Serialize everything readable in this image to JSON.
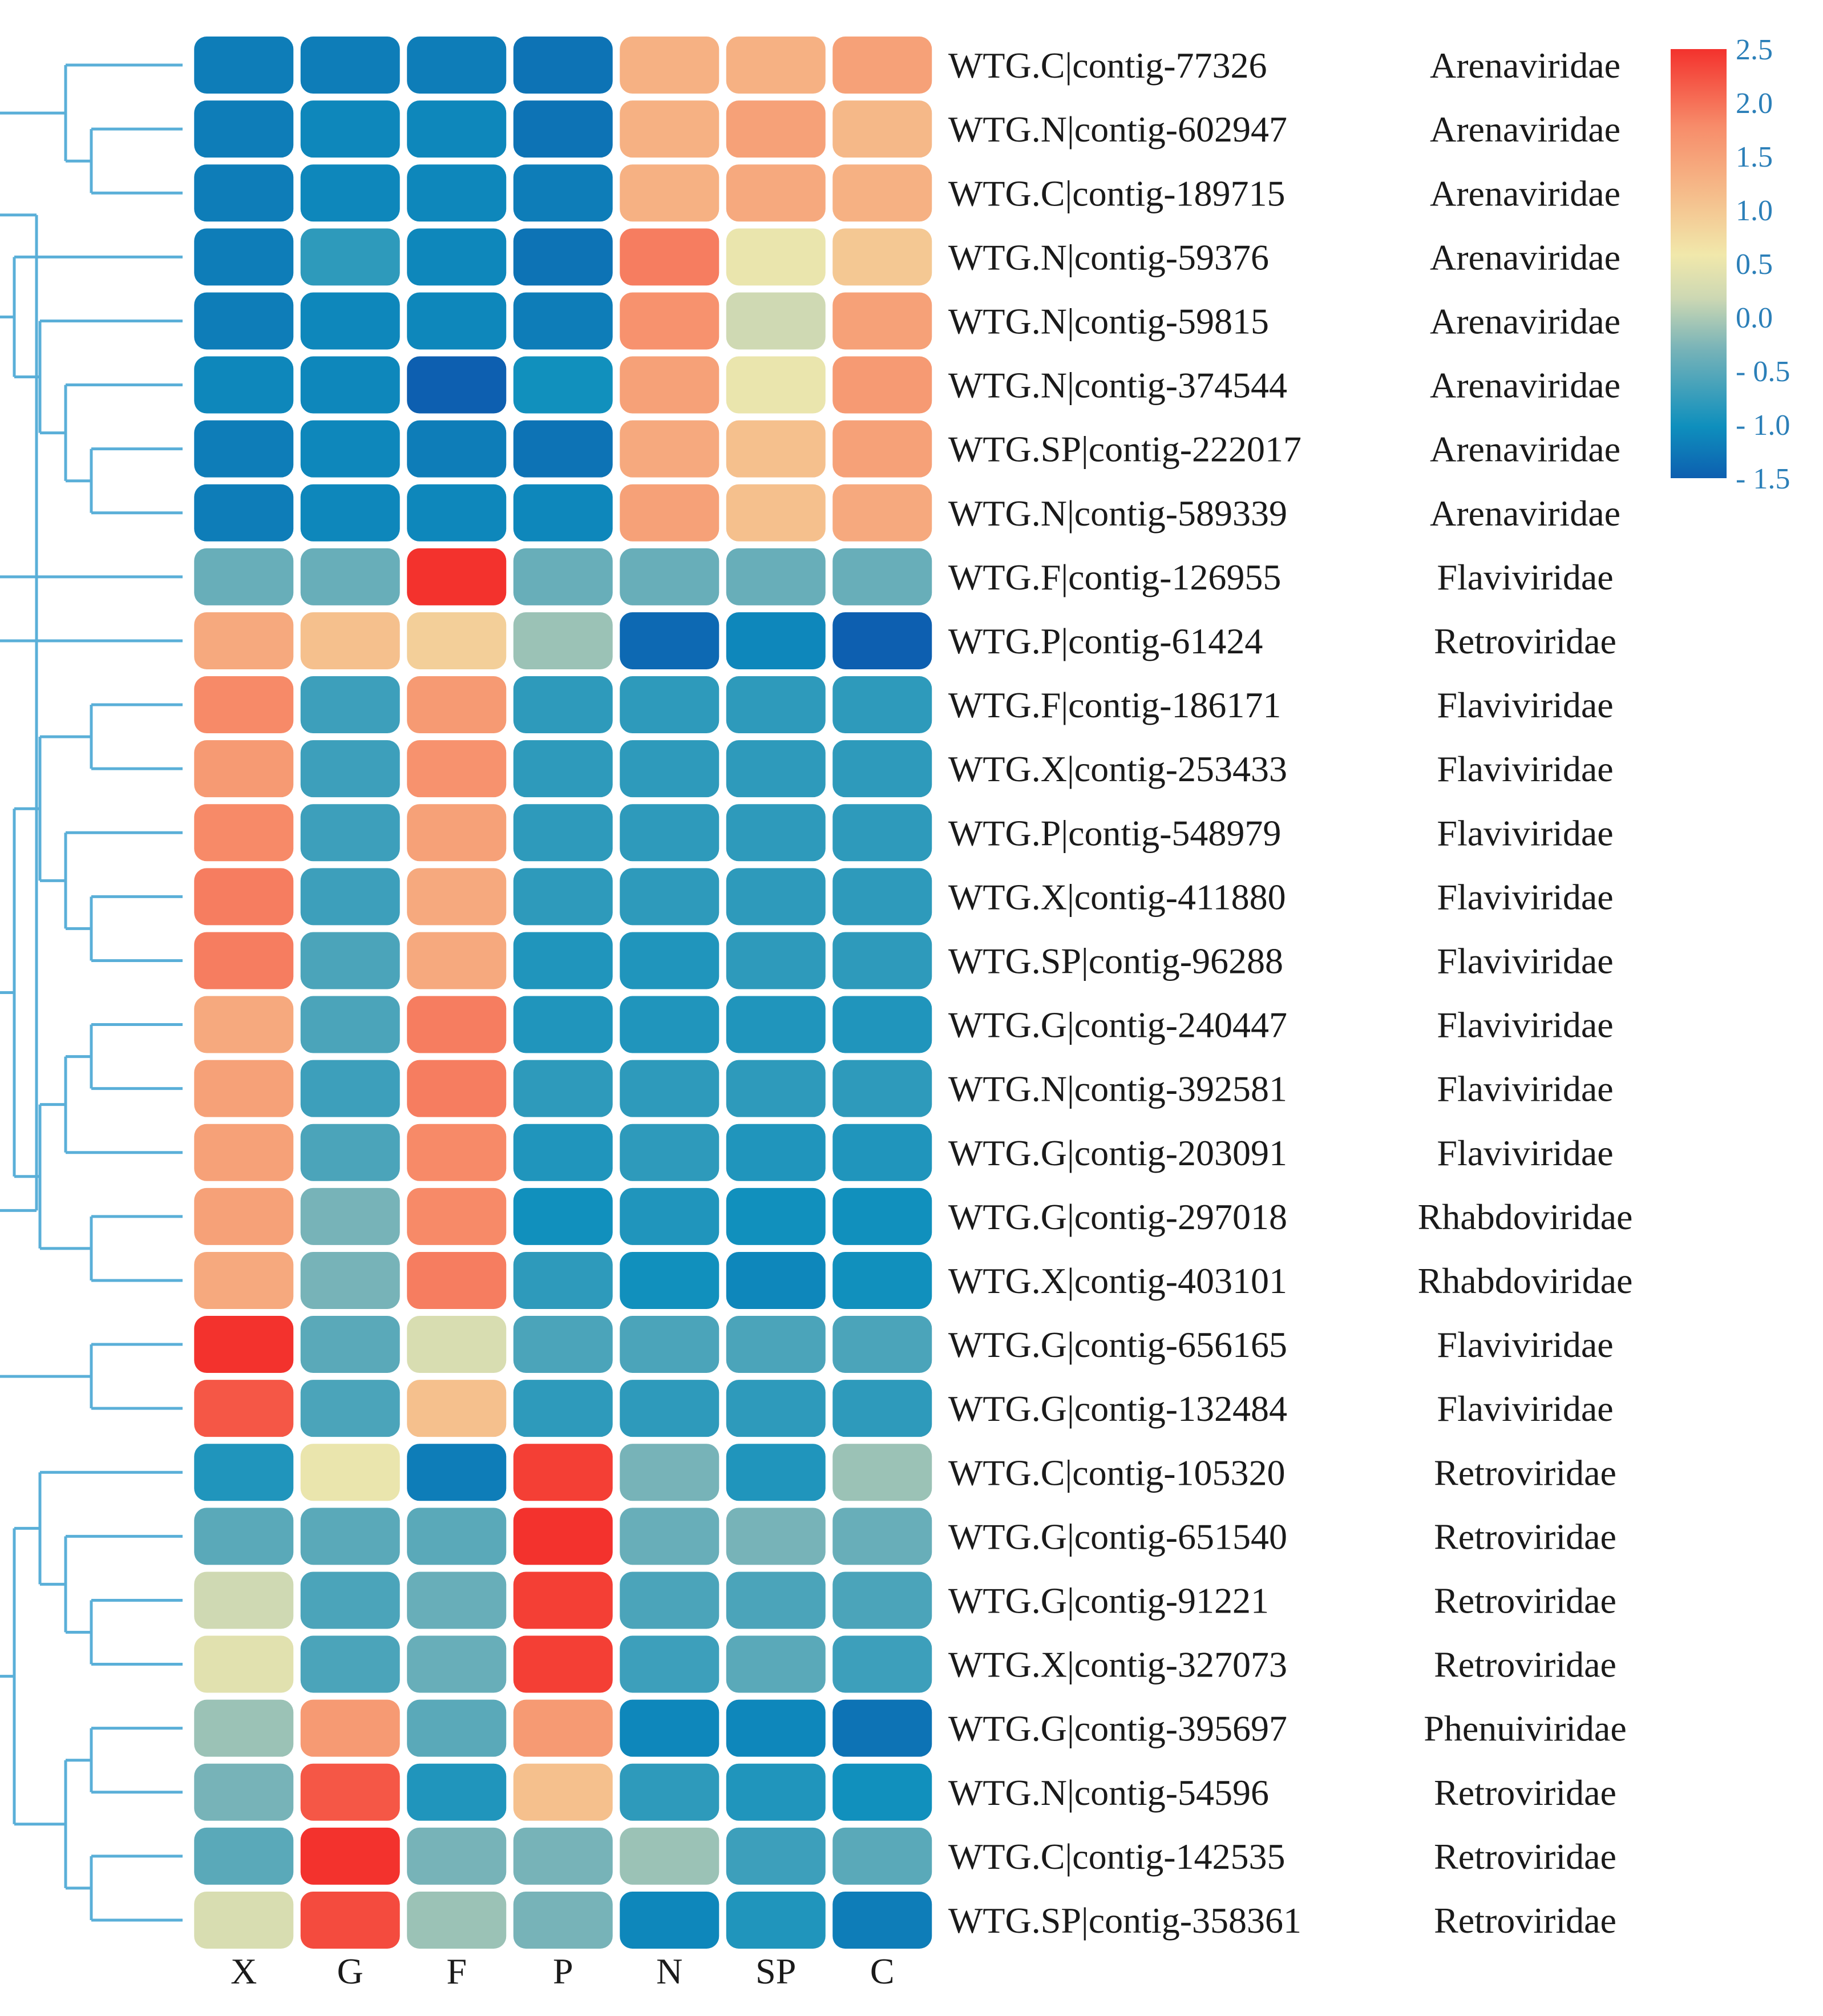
{
  "chart_data": {
    "type": "heatmap",
    "title": "",
    "columns": [
      "X",
      "G",
      "F",
      "P",
      "N",
      "SP",
      "C"
    ],
    "rows": [
      {
        "label": "WTG.C|contig-77326",
        "family": "Arenaviridae",
        "values": [
          -1.2,
          -1.2,
          -1.2,
          -1.3,
          1.3,
          1.3,
          1.5
        ]
      },
      {
        "label": "WTG.N|contig-602947",
        "family": "Arenaviridae",
        "values": [
          -1.2,
          -1.1,
          -1.1,
          -1.3,
          1.3,
          1.5,
          1.2
        ]
      },
      {
        "label": "WTG.C|contig-189715",
        "family": "Arenaviridae",
        "values": [
          -1.2,
          -1.1,
          -1.1,
          -1.2,
          1.3,
          1.4,
          1.3
        ]
      },
      {
        "label": "WTG.N|contig-59376",
        "family": "Arenaviridae",
        "values": [
          -1.2,
          -0.8,
          -1.1,
          -1.3,
          1.9,
          0.5,
          1.0
        ]
      },
      {
        "label": "WTG.N|contig-59815",
        "family": "Arenaviridae",
        "values": [
          -1.2,
          -1.1,
          -1.1,
          -1.2,
          1.7,
          0.2,
          1.5
        ]
      },
      {
        "label": "WTG.N|contig-374544",
        "family": "Arenaviridae",
        "values": [
          -1.1,
          -1.1,
          -1.5,
          -1.0,
          1.5,
          0.5,
          1.6
        ]
      },
      {
        "label": "WTG.SP|contig-222017",
        "family": "Arenaviridae",
        "values": [
          -1.2,
          -1.1,
          -1.2,
          -1.3,
          1.4,
          1.1,
          1.5
        ]
      },
      {
        "label": "WTG.N|contig-589339",
        "family": "Arenaviridae",
        "values": [
          -1.2,
          -1.1,
          -1.1,
          -1.1,
          1.5,
          1.1,
          1.4
        ]
      },
      {
        "label": "WTG.F|contig-126955",
        "family": "Flaviviridae",
        "values": [
          -0.4,
          -0.4,
          2.5,
          -0.4,
          -0.4,
          -0.4,
          -0.4
        ]
      },
      {
        "label": "WTG.P|contig-61424",
        "family": "Retroviridae",
        "values": [
          1.4,
          1.1,
          0.9,
          -0.1,
          -1.4,
          -1.1,
          -1.5
        ]
      },
      {
        "label": "WTG.F|contig-186171",
        "family": "Flaviviridae",
        "values": [
          1.8,
          -0.7,
          1.6,
          -0.8,
          -0.8,
          -0.8,
          -0.8
        ]
      },
      {
        "label": "WTG.X|contig-253433",
        "family": "Flaviviridae",
        "values": [
          1.6,
          -0.7,
          1.7,
          -0.8,
          -0.8,
          -0.8,
          -0.8
        ]
      },
      {
        "label": "WTG.P|contig-548979",
        "family": "Flaviviridae",
        "values": [
          1.8,
          -0.7,
          1.5,
          -0.8,
          -0.8,
          -0.8,
          -0.8
        ]
      },
      {
        "label": "WTG.X|contig-411880",
        "family": "Flaviviridae",
        "values": [
          1.9,
          -0.7,
          1.4,
          -0.8,
          -0.8,
          -0.8,
          -0.8
        ]
      },
      {
        "label": "WTG.SP|contig-96288",
        "family": "Flaviviridae",
        "values": [
          1.9,
          -0.6,
          1.4,
          -0.9,
          -0.9,
          -0.8,
          -0.8
        ]
      },
      {
        "label": "WTG.G|contig-240447",
        "family": "Flaviviridae",
        "values": [
          1.4,
          -0.6,
          1.9,
          -0.9,
          -0.9,
          -0.9,
          -0.9
        ]
      },
      {
        "label": "WTG.N|contig-392581",
        "family": "Flaviviridae",
        "values": [
          1.5,
          -0.7,
          1.9,
          -0.8,
          -0.8,
          -0.8,
          -0.8
        ]
      },
      {
        "label": "WTG.G|contig-203091",
        "family": "Flaviviridae",
        "values": [
          1.5,
          -0.6,
          1.8,
          -0.9,
          -0.8,
          -0.9,
          -0.9
        ]
      },
      {
        "label": "WTG.G|contig-297018",
        "family": "Rhabdoviridae",
        "values": [
          1.5,
          -0.3,
          1.8,
          -1.0,
          -0.9,
          -1.0,
          -1.0
        ]
      },
      {
        "label": "WTG.X|contig-403101",
        "family": "Rhabdoviridae",
        "values": [
          1.4,
          -0.3,
          1.9,
          -0.8,
          -1.0,
          -1.1,
          -1.0
        ]
      },
      {
        "label": "WTG.G|contig-656165",
        "family": "Flaviviridae",
        "values": [
          2.5,
          -0.5,
          0.3,
          -0.6,
          -0.6,
          -0.6,
          -0.6
        ]
      },
      {
        "label": "WTG.G|contig-132484",
        "family": "Flaviviridae",
        "values": [
          2.2,
          -0.6,
          1.1,
          -0.8,
          -0.8,
          -0.8,
          -0.8
        ]
      },
      {
        "label": "WTG.C|contig-105320",
        "family": "Retroviridae",
        "values": [
          -0.9,
          0.5,
          -1.2,
          2.4,
          -0.3,
          -0.9,
          -0.1
        ]
      },
      {
        "label": "WTG.G|contig-651540",
        "family": "Retroviridae",
        "values": [
          -0.5,
          -0.5,
          -0.5,
          2.5,
          -0.4,
          -0.3,
          -0.4
        ]
      },
      {
        "label": "WTG.G|contig-91221",
        "family": "Retroviridae",
        "values": [
          0.2,
          -0.6,
          -0.4,
          2.4,
          -0.6,
          -0.6,
          -0.6
        ]
      },
      {
        "label": "WTG.X|contig-327073",
        "family": "Retroviridae",
        "values": [
          0.4,
          -0.6,
          -0.4,
          2.4,
          -0.7,
          -0.5,
          -0.7
        ]
      },
      {
        "label": "WTG.G|contig-395697",
        "family": "Phenuiviridae",
        "values": [
          -0.1,
          1.6,
          -0.5,
          1.6,
          -1.1,
          -1.1,
          -1.3
        ]
      },
      {
        "label": "WTG.N|contig-54596",
        "family": "Retroviridae",
        "values": [
          -0.3,
          2.2,
          -0.9,
          1.1,
          -0.8,
          -0.9,
          -1.0
        ]
      },
      {
        "label": "WTG.C|contig-142535",
        "family": "Retroviridae",
        "values": [
          -0.5,
          2.5,
          -0.3,
          -0.3,
          -0.1,
          -0.7,
          -0.5
        ]
      },
      {
        "label": "WTG.SP|contig-358361",
        "family": "Retroviridae",
        "values": [
          0.3,
          2.3,
          -0.1,
          -0.3,
          -1.1,
          -0.9,
          -1.2
        ]
      }
    ],
    "colorbar": {
      "range": [
        -1.5,
        2.5
      ],
      "ticks": [
        "2.5",
        "2.0",
        "1.5",
        "1.0",
        "0.5",
        "0.0",
        "- 0.5",
        "- 1.0",
        "- 1.5"
      ],
      "palette": [
        "#0d5fb0",
        "#0e8fbd",
        "#77b3b8",
        "#cdd8b3",
        "#f1e8ab",
        "#f5bd8b",
        "#f78c6a",
        "#f3322d"
      ]
    },
    "dendrogram_color": "#5aafd8"
  }
}
